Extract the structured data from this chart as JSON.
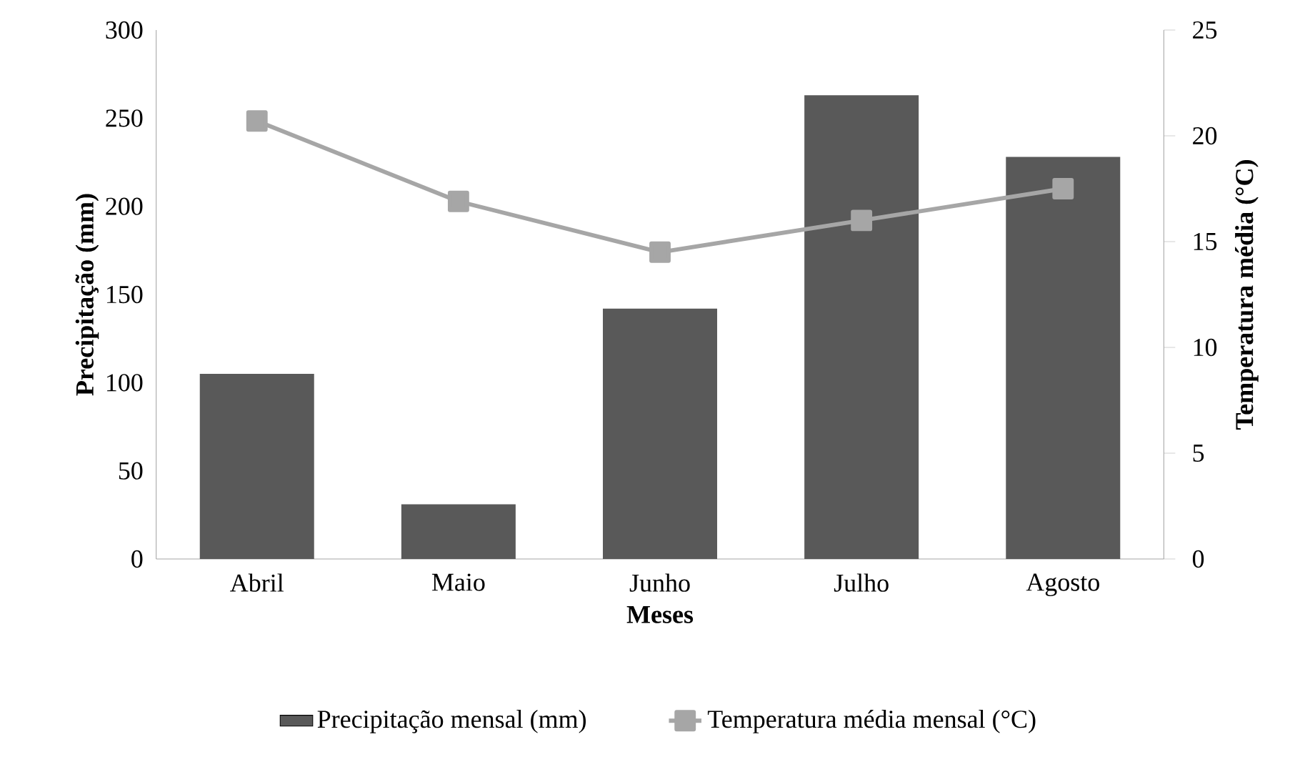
{
  "chart_data": {
    "type": "bar",
    "xlabel": "Meses",
    "ylabel": "Precipitação (mm)",
    "y2label": "Temperatura média (°C)",
    "categories": [
      "Abril",
      "Maio",
      "Junho",
      "Julho",
      "Agosto"
    ],
    "series": [
      {
        "name": "Precipitação mensal (mm)",
        "color": "#595959",
        "values": [
          105,
          31,
          142,
          263,
          228
        ]
      },
      {
        "name": "Temperatura média mensal (°C)",
        "type": "line",
        "axis": "y2",
        "color": "#a6a6a6",
        "values": [
          20.7,
          16.9,
          14.5,
          16.0,
          17.5
        ]
      }
    ],
    "ylim": [
      0,
      300
    ],
    "yticks": [
      0,
      50,
      100,
      150,
      200,
      250,
      300
    ],
    "y2lim": [
      0,
      25
    ],
    "y2ticks": [
      0,
      5,
      10,
      15,
      20,
      25
    ],
    "marker": "square",
    "legend": "bottom"
  }
}
